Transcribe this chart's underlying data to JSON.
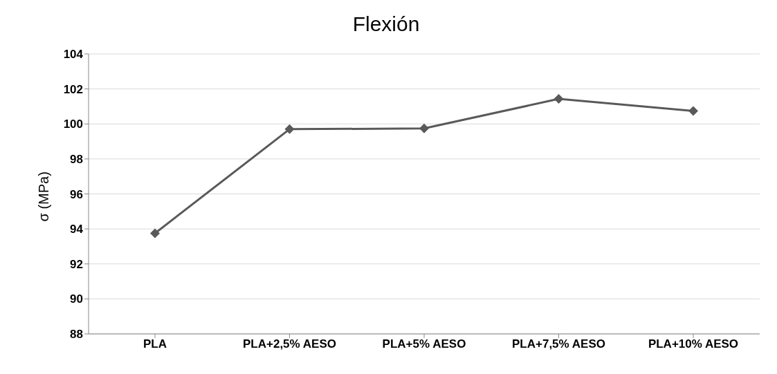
{
  "chart_data": {
    "type": "line",
    "title": "Flexión",
    "ylabel": "σ (MPa)",
    "categories": [
      "PLA",
      "PLA+2,5% AESO",
      "PLA+5% AESO",
      "PLA+7,5% AESO",
      "PLA+10% AESO"
    ],
    "series": [
      {
        "color": "#595959",
        "values": [
          93.75,
          99.7,
          99.74,
          101.43,
          100.74
        ]
      }
    ],
    "ylim": [
      88,
      104
    ],
    "yticks": [
      88,
      90,
      92,
      94,
      96,
      98,
      100,
      102,
      104
    ],
    "grid": "y",
    "marker": "diamond",
    "line_style": "solid",
    "legend": false
  }
}
